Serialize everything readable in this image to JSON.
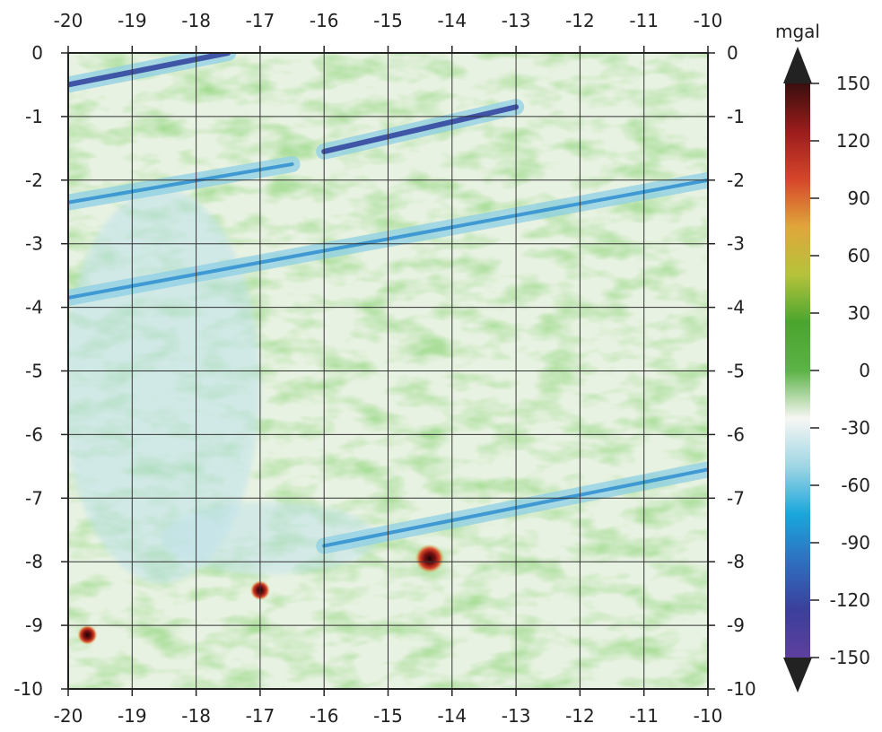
{
  "map": {
    "x_ticks": [
      "-20",
      "-19",
      "-18",
      "-17",
      "-16",
      "-15",
      "-14",
      "-13",
      "-12",
      "-11",
      "-10"
    ],
    "y_ticks": [
      "0",
      "-1",
      "-2",
      "-3",
      "-4",
      "-5",
      "-6",
      "-7",
      "-8",
      "-9",
      "-10"
    ],
    "x_range": [
      -20,
      -10
    ],
    "y_range": [
      -10,
      0
    ],
    "grid": true,
    "hot_spots": [
      {
        "x": -14.35,
        "y": -7.95
      },
      {
        "x": -17.0,
        "y": -8.45
      },
      {
        "x": -19.7,
        "y": -9.15
      }
    ],
    "trough_lines": [
      {
        "from": [
          -20,
          -0.5
        ],
        "to": [
          -17.5,
          0.0
        ]
      },
      {
        "from": [
          -16.0,
          -1.55
        ],
        "to": [
          -13.0,
          -0.85
        ]
      },
      {
        "from": [
          -20,
          -2.35
        ],
        "to": [
          -16.5,
          -1.75
        ]
      },
      {
        "from": [
          -16.0,
          -7.75
        ],
        "to": [
          -10,
          -6.55
        ]
      },
      {
        "from": [
          -20,
          -3.85
        ],
        "to": [
          -10,
          -2.0
        ]
      }
    ]
  },
  "colorbar": {
    "unit": "mgal",
    "labels": [
      "150",
      "120",
      "90",
      "60",
      "30",
      "0",
      "-30",
      "-60",
      "-90",
      "-120",
      "-150"
    ],
    "range": [
      -150,
      150
    ],
    "colors": [
      "#5e3f9e",
      "#3b3f9c",
      "#2f6fc0",
      "#19a7dc",
      "#9fd6e4",
      "#f7f7f4",
      "#5cb246",
      "#4aa52e",
      "#b5c33a",
      "#e0a63a",
      "#d6452a",
      "#9b1c1c",
      "#3a0e0e"
    ]
  }
}
